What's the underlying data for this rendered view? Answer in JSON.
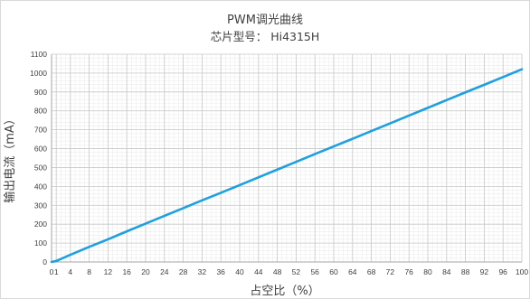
{
  "chart_data": {
    "type": "line",
    "title": "PWM调光曲线",
    "subtitle": "芯片型号： Hi4315H",
    "xlabel": "占空比（%）",
    "ylabel": "输出电流（mA）",
    "xlim": [
      0,
      100
    ],
    "ylim": [
      0,
      1100
    ],
    "x_ticks": [
      0,
      1,
      4,
      8,
      12,
      16,
      20,
      24,
      28,
      32,
      36,
      40,
      44,
      48,
      52,
      56,
      60,
      64,
      68,
      72,
      76,
      80,
      84,
      88,
      92,
      96,
      100
    ],
    "y_ticks": [
      0,
      100,
      200,
      300,
      400,
      500,
      600,
      700,
      800,
      900,
      1000,
      1100
    ],
    "grid": true,
    "legend": "none",
    "series": [
      {
        "color": "#1ea0e0",
        "x": [
          0,
          1,
          4,
          8,
          12,
          16,
          20,
          24,
          28,
          32,
          36,
          40,
          44,
          48,
          52,
          56,
          60,
          64,
          68,
          72,
          76,
          80,
          84,
          88,
          92,
          96,
          100
        ],
        "y": [
          0,
          5,
          38,
          80,
          120,
          162,
          203,
          244,
          285,
          326,
          366,
          407,
          448,
          489,
          530,
          571,
          612,
          652,
          693,
          734,
          775,
          816,
          857,
          898,
          938,
          979,
          1020
        ]
      }
    ]
  }
}
